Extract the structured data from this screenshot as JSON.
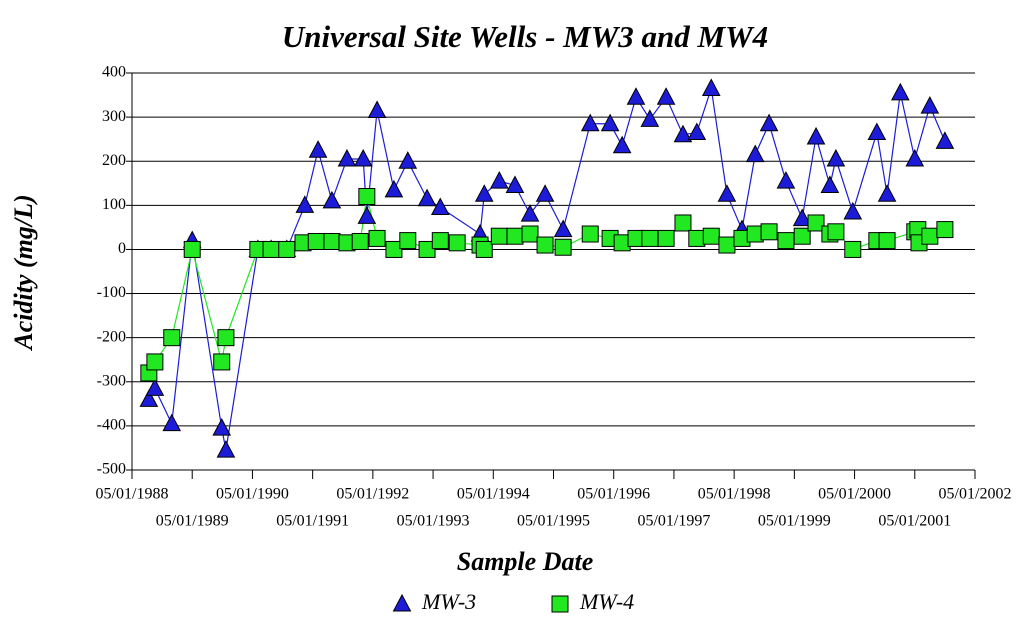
{
  "chart_data": {
    "type": "line",
    "title": "Universal Site Wells - MW3 and MW4",
    "xlabel": "Sample Date",
    "ylabel": "Acidity (mg/L)",
    "xlim": [
      1988.33,
      2002.33
    ],
    "xticks": [
      {
        "value": 1988.33,
        "label": "05/01/1988"
      },
      {
        "value": 1989.33,
        "label": "05/01/1989"
      },
      {
        "value": 1990.33,
        "label": "05/01/1990"
      },
      {
        "value": 1991.33,
        "label": "05/01/1991"
      },
      {
        "value": 1992.33,
        "label": "05/01/1992"
      },
      {
        "value": 1993.33,
        "label": "05/01/1993"
      },
      {
        "value": 1994.33,
        "label": "05/01/1994"
      },
      {
        "value": 1995.33,
        "label": "05/01/1995"
      },
      {
        "value": 1996.33,
        "label": "05/01/1996"
      },
      {
        "value": 1997.33,
        "label": "05/01/1997"
      },
      {
        "value": 1998.33,
        "label": "05/01/1998"
      },
      {
        "value": 1999.33,
        "label": "05/01/1999"
      },
      {
        "value": 2000.33,
        "label": "05/01/2000"
      },
      {
        "value": 2001.33,
        "label": "05/01/2001"
      },
      {
        "value": 2002.33,
        "label": "05/01/2002"
      }
    ],
    "ylim": [
      -500,
      400
    ],
    "yticks": [
      -500,
      -400,
      -300,
      -200,
      -100,
      0,
      100,
      200,
      300,
      400
    ],
    "grid": true,
    "series": [
      {
        "name": "MW-3",
        "color": "#1c1cd8",
        "marker": "triangle",
        "x": [
          1988.61,
          1988.71,
          1988.99,
          1989.33,
          1989.82,
          1989.89,
          1990.42,
          1990.64,
          1990.9,
          1991.2,
          1991.42,
          1991.65,
          1991.9,
          1992.17,
          1992.23,
          1992.4,
          1992.68,
          1992.91,
          1993.23,
          1993.45,
          1994.11,
          1994.18,
          1994.43,
          1994.69,
          1994.94,
          1995.19,
          1995.49,
          1995.94,
          1996.27,
          1996.47,
          1996.7,
          1996.93,
          1997.2,
          1997.48,
          1997.71,
          1997.95,
          1998.21,
          1998.46,
          1998.68,
          1998.91,
          1999.19,
          1999.46,
          1999.69,
          1999.92,
          2000.02,
          2000.3,
          2000.7,
          2000.87,
          2001.09,
          2001.33,
          2001.58,
          2001.83
        ],
        "values": [
          -340,
          -315,
          -395,
          20,
          -405,
          -455,
          0,
          0,
          0,
          100,
          225,
          110,
          205,
          205,
          75,
          315,
          135,
          200,
          115,
          95,
          35,
          125,
          155,
          145,
          80,
          125,
          45,
          285,
          285,
          235,
          345,
          295,
          345,
          260,
          265,
          365,
          125,
          45,
          215,
          285,
          155,
          70,
          255,
          145,
          205,
          85,
          265,
          125,
          355,
          205,
          325,
          245
        ]
      },
      {
        "name": "MW-4",
        "color": "#22e822",
        "marker": "square",
        "x": [
          1988.61,
          1988.71,
          1988.99,
          1989.33,
          1989.82,
          1989.89,
          1990.42,
          1990.64,
          1990.9,
          1991.17,
          1991.39,
          1991.65,
          1991.9,
          1992.12,
          1992.23,
          1992.4,
          1992.68,
          1992.91,
          1993.23,
          1993.45,
          1993.73,
          1994.11,
          1994.18,
          1994.43,
          1994.69,
          1994.94,
          1995.19,
          1995.49,
          1995.94,
          1996.27,
          1996.47,
          1996.7,
          1996.93,
          1997.2,
          1997.48,
          1997.71,
          1997.95,
          1998.21,
          1998.46,
          1998.68,
          1998.91,
          1999.19,
          1999.46,
          1999.69,
          1999.92,
          2000.02,
          2000.3,
          2000.7,
          2000.87,
          2001.33,
          2001.38,
          2001.4,
          2001.58,
          2001.83
        ],
        "values": [
          -280,
          -255,
          -200,
          0,
          -255,
          -200,
          0,
          0,
          0,
          15,
          18,
          18,
          15,
          18,
          120,
          25,
          0,
          20,
          0,
          20,
          15,
          10,
          0,
          30,
          30,
          35,
          10,
          5,
          35,
          25,
          15,
          25,
          25,
          25,
          60,
          25,
          30,
          10,
          25,
          35,
          40,
          20,
          30,
          60,
          35,
          40,
          0,
          20,
          20,
          40,
          45,
          15,
          30,
          45
        ]
      }
    ]
  }
}
